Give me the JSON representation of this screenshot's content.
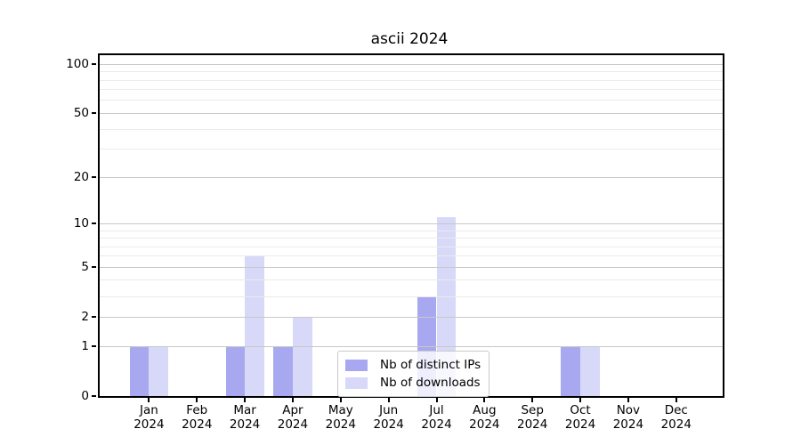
{
  "chart_data": {
    "type": "bar",
    "title": "ascii 2024",
    "categories": [
      "Jan",
      "Feb",
      "Mar",
      "Apr",
      "May",
      "Jun",
      "Jul",
      "Aug",
      "Sep",
      "Oct",
      "Nov",
      "Dec"
    ],
    "year": "2024",
    "series": [
      {
        "name": "Nb of distinct IPs",
        "color": "#a8a8f0",
        "values": [
          1,
          0,
          1,
          1,
          0,
          0,
          3,
          0,
          0,
          1,
          0,
          0
        ]
      },
      {
        "name": "Nb of downloads",
        "color": "#d8d8f8",
        "values": [
          1,
          0,
          6,
          2,
          0,
          0,
          11,
          0,
          0,
          1,
          0,
          0
        ]
      }
    ],
    "y_axis": {
      "ticks": [
        0,
        1,
        2,
        5,
        10,
        20,
        50,
        100
      ],
      "minor_gridlines": [
        3,
        4,
        6,
        7,
        8,
        9,
        30,
        40,
        60,
        70,
        80,
        90
      ],
      "scale": "log10(1+v)",
      "ylim": [
        0,
        113
      ]
    },
    "x_axis": {
      "ticks_per_month": true
    },
    "legend": {
      "position": "lower center"
    },
    "grid": true,
    "colors": {
      "major_grid": "#c8c8c8",
      "minor_grid": "#ebebeb",
      "spine": "#000000",
      "background": "#ffffff"
    }
  }
}
